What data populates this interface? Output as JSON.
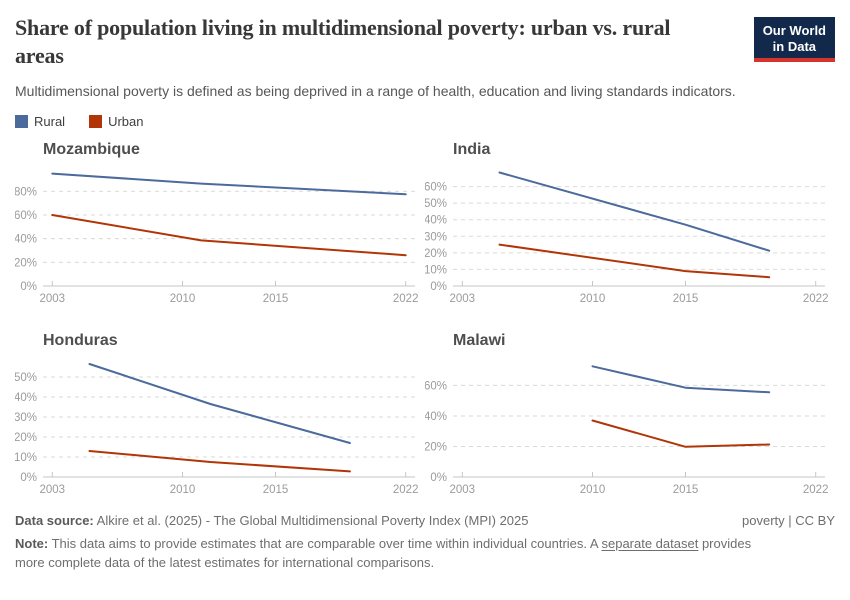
{
  "header": {
    "title": "Share of population living in multidimensional poverty: urban vs. rural areas",
    "subtitle": "Multidimensional poverty is defined as being deprived in a range of health, education and living standards indicators.",
    "logo": {
      "line1": "Our World",
      "line2": "in Data",
      "bg": "#12294B",
      "stripe": "#D4342C"
    }
  },
  "legend": {
    "items": [
      {
        "label": "Rural",
        "color": "#4C6A9C"
      },
      {
        "label": "Urban",
        "color": "#B13507"
      }
    ]
  },
  "chart_data": [
    {
      "type": "line",
      "title": "Mozambique",
      "years": [
        2003,
        2011,
        2022
      ],
      "series": [
        {
          "name": "Rural",
          "color": "#4C6A9C",
          "values": [
            95,
            86.5,
            77.5
          ]
        },
        {
          "name": "Urban",
          "color": "#B13507",
          "values": [
            60,
            38.5,
            26
          ]
        }
      ],
      "xlim": [
        2002.5,
        2022.5
      ],
      "ylim": [
        0,
        98
      ],
      "xticks": [
        2003,
        2010,
        2015,
        2022
      ],
      "yticks": [
        0,
        20,
        40,
        60,
        80
      ],
      "ytick_suffix": "%",
      "grid": "dashed-horizontal",
      "unit": "% of population"
    },
    {
      "type": "line",
      "title": "India",
      "years": [
        2005,
        2015,
        2019.5
      ],
      "series": [
        {
          "name": "Rural",
          "color": "#4C6A9C",
          "values": [
            68.5,
            37,
            21.3
          ]
        },
        {
          "name": "Urban",
          "color": "#B13507",
          "values": [
            25,
            9,
            5.3
          ]
        }
      ],
      "xlim": [
        2002.5,
        2022.5
      ],
      "ylim": [
        0,
        70
      ],
      "xticks": [
        2003,
        2010,
        2015,
        2022
      ],
      "yticks": [
        0,
        10,
        20,
        30,
        40,
        50,
        60
      ],
      "ytick_suffix": "%",
      "grid": "dashed-horizontal",
      "unit": "% of population"
    },
    {
      "type": "line",
      "title": "Honduras",
      "years": [
        2005,
        2011.5,
        2019
      ],
      "series": [
        {
          "name": "Rural",
          "color": "#4C6A9C",
          "values": [
            56.5,
            36.5,
            17
          ]
        },
        {
          "name": "Urban",
          "color": "#B13507",
          "values": [
            13,
            7.5,
            2.8
          ]
        }
      ],
      "xlim": [
        2002.5,
        2022.5
      ],
      "ylim": [
        0,
        58
      ],
      "xticks": [
        2003,
        2010,
        2015,
        2022
      ],
      "yticks": [
        0,
        10,
        20,
        30,
        40,
        50
      ],
      "ytick_suffix": "%",
      "grid": "dashed-horizontal",
      "unit": "% of population"
    },
    {
      "type": "line",
      "title": "Malawi",
      "years": [
        2010,
        2015,
        2019.5
      ],
      "series": [
        {
          "name": "Rural",
          "color": "#4C6A9C",
          "values": [
            72.5,
            58.5,
            55.5
          ]
        },
        {
          "name": "Urban",
          "color": "#B13507",
          "values": [
            37,
            19.8,
            21.3
          ]
        }
      ],
      "xlim": [
        2002.5,
        2022.5
      ],
      "ylim": [
        0,
        76
      ],
      "xticks": [
        2003,
        2010,
        2015,
        2022
      ],
      "yticks": [
        0,
        20,
        40,
        60
      ],
      "ytick_suffix": "%",
      "grid": "dashed-horizontal",
      "unit": "% of population"
    }
  ],
  "footer": {
    "datasource_label": "Data source:",
    "datasource_text": " Alkire et al. (2025) - The Global Multidimensional Poverty Index (MPI) 2025",
    "right_text": "poverty | CC BY",
    "note_label": "Note:",
    "note_text_1": " This data aims to provide estimates that are comparable over time within individual countries. A ",
    "note_link": "separate dataset",
    "note_text_2": " provides more complete data of the latest estimates for international comparisons."
  }
}
